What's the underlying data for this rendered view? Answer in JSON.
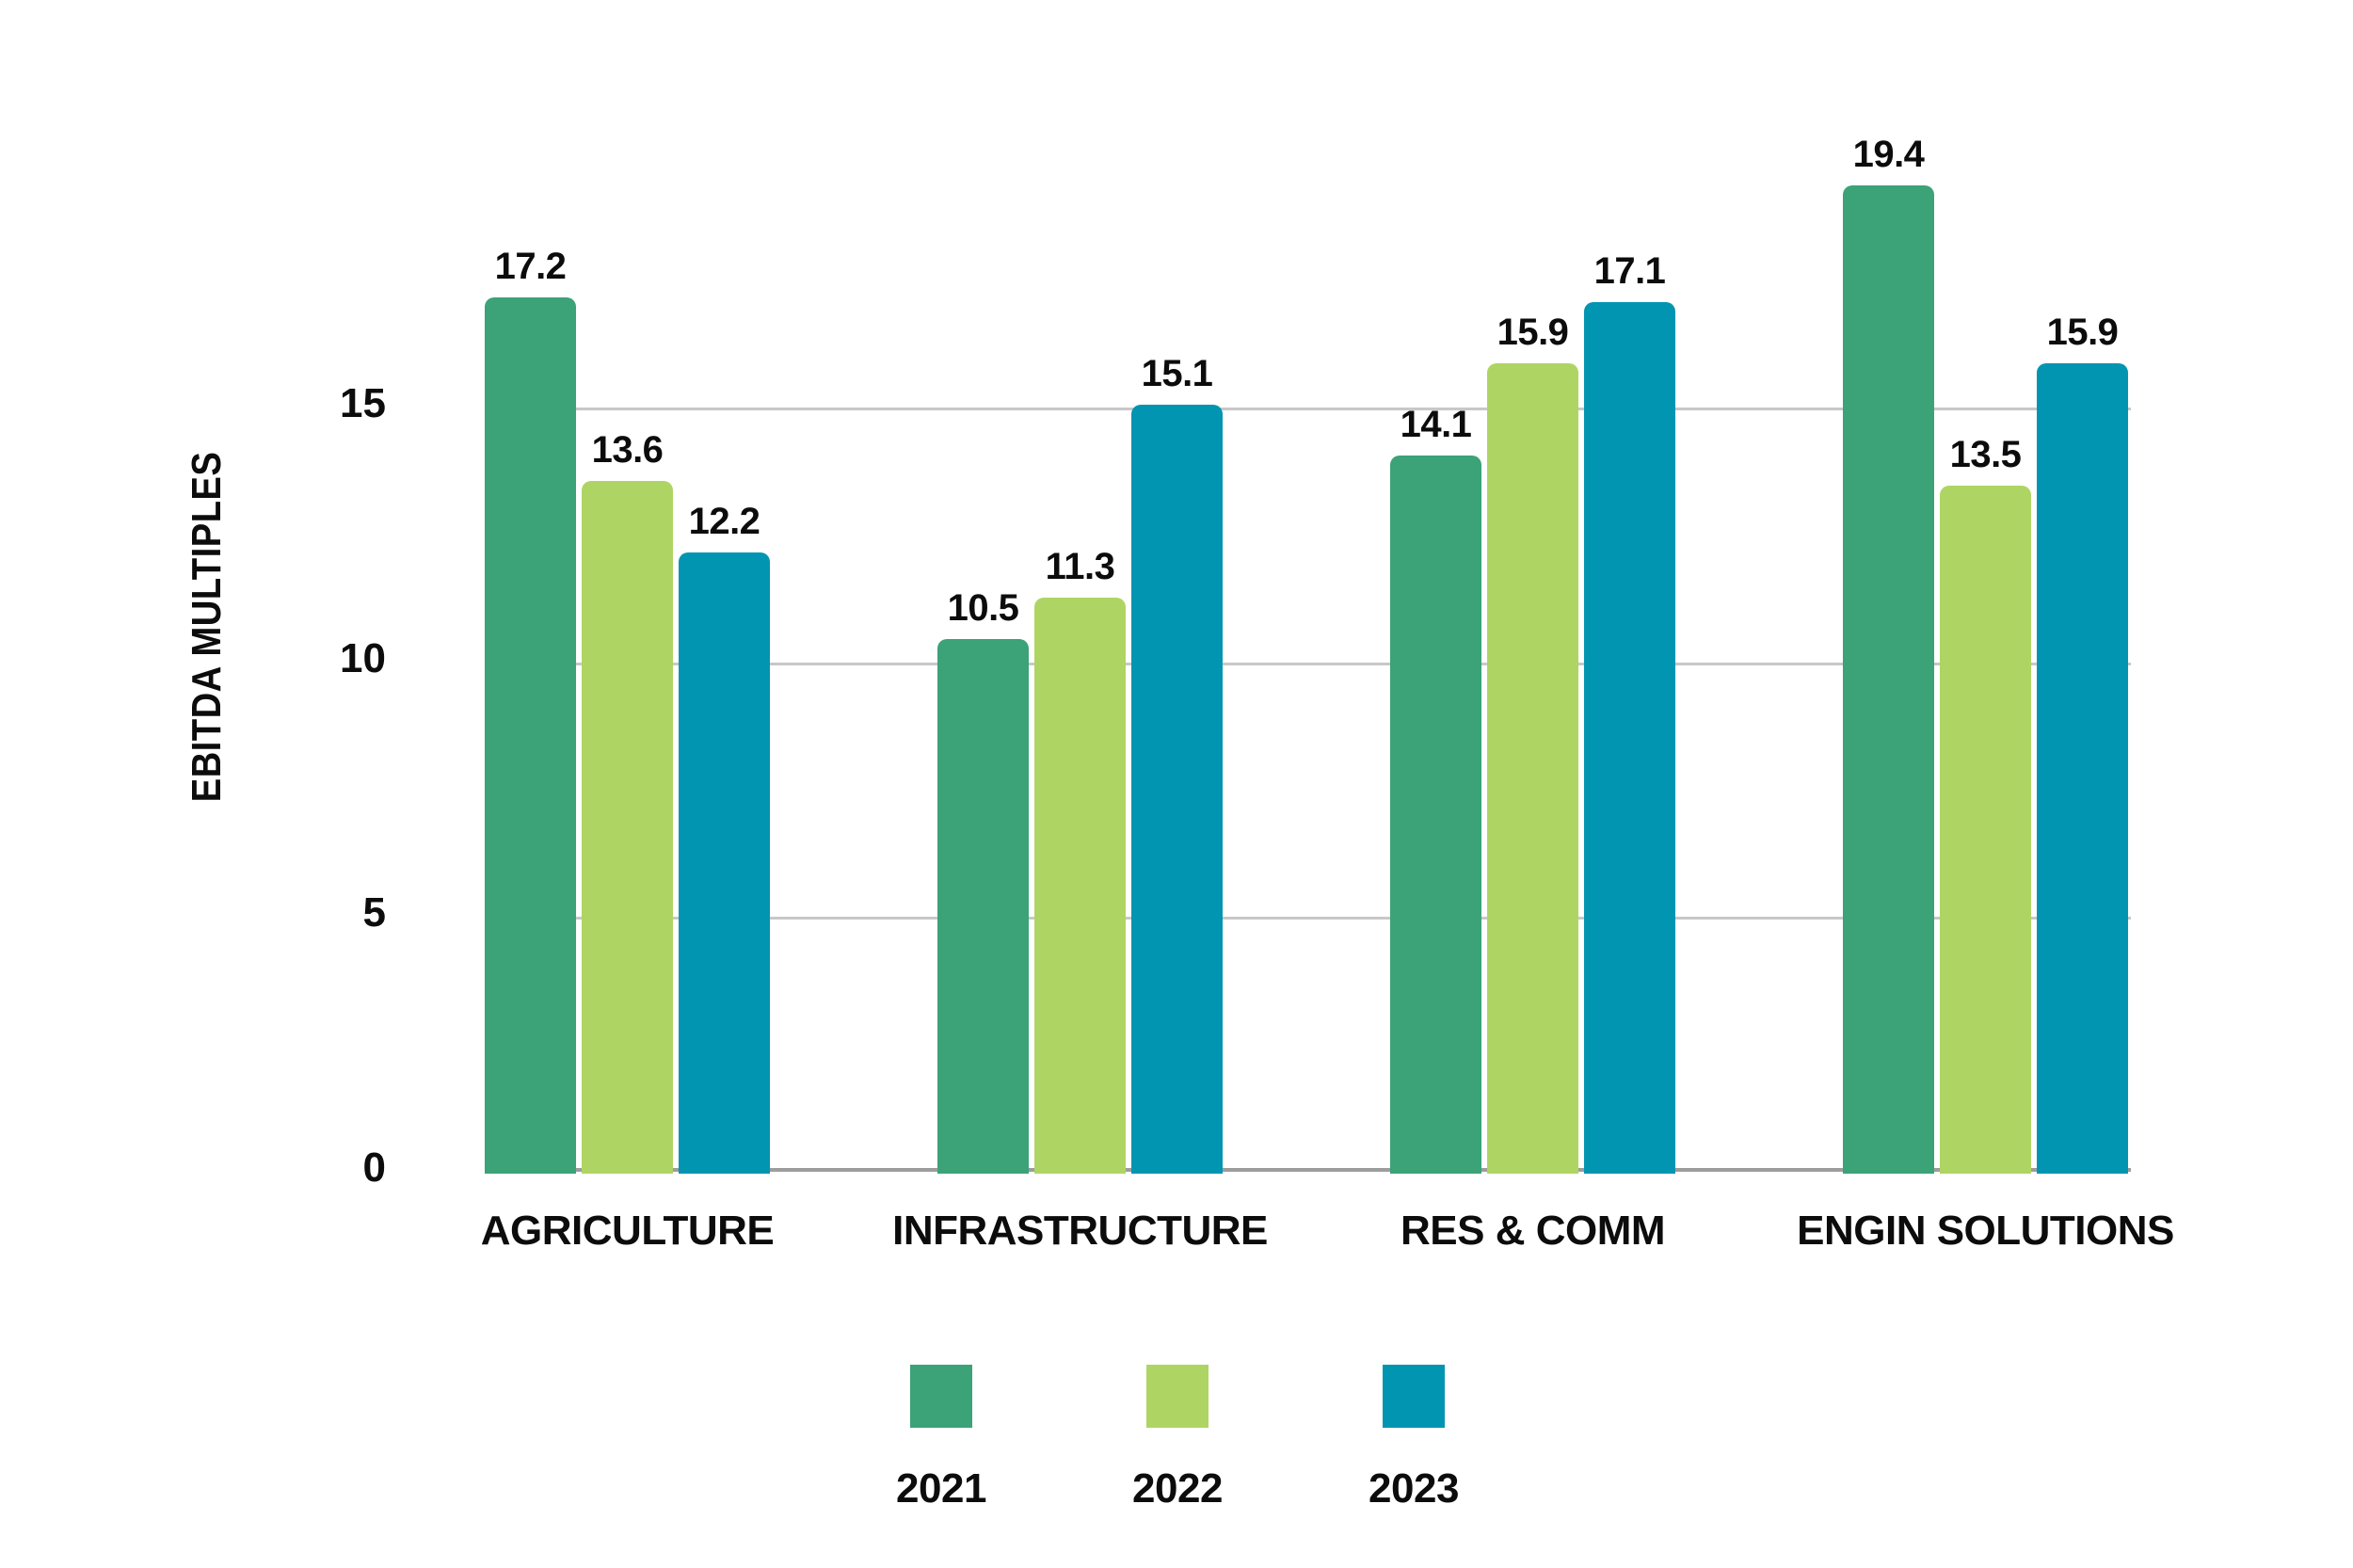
{
  "chart_data": {
    "type": "bar",
    "title": "",
    "ylabel": "EBITDA MULTIPLES",
    "xlabel": "",
    "categories": [
      "AGRICULTURE",
      "INFRASTRUCTURE",
      "RES & COMM",
      "ENGIN SOLUTIONS"
    ],
    "series": [
      {
        "name": "2021",
        "color": "#3CA277",
        "values": [
          17.2,
          10.5,
          14.1,
          19.4
        ]
      },
      {
        "name": "2022",
        "color": "#AED563",
        "values": [
          13.6,
          11.3,
          15.9,
          13.5
        ]
      },
      {
        "name": "2023",
        "color": "#0295B1",
        "values": [
          12.2,
          15.1,
          17.1,
          15.9
        ]
      }
    ],
    "yticks": [
      0,
      5,
      10,
      15
    ],
    "ylim": [
      0,
      21.5
    ],
    "grid": true,
    "grid_color": "#C8C8C8",
    "axis_color": "#9D9D9D",
    "text_color": "#0C0C0C",
    "legend_position": "bottom"
  }
}
